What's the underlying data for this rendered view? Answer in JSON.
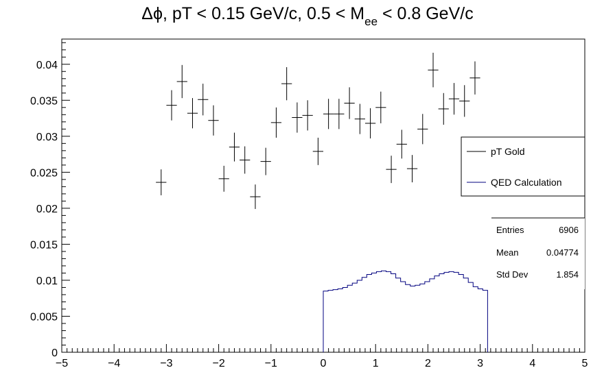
{
  "title": {
    "prefix": "Δϕ, pT < 0.15 GeV/c, 0.5 < M",
    "subscript": "ee",
    "suffix": " < 0.8 GeV/c"
  },
  "legend": {
    "entries": [
      {
        "label": "pT Gold",
        "color": "#000000"
      },
      {
        "label": "QED Calculation",
        "color": "#00007f"
      }
    ]
  },
  "stats": {
    "rows": [
      {
        "label": "Entries",
        "value": "6906"
      },
      {
        "label": "Mean",
        "value": "0.04774"
      },
      {
        "label": "Std Dev",
        "value": "1.854"
      }
    ]
  },
  "chart_data": {
    "type": "scatter",
    "xlim": [
      -5,
      5
    ],
    "ylim": [
      0,
      0.0435
    ],
    "x_ticks": [
      "−5",
      "−4",
      "−3",
      "−2",
      "−1",
      "0",
      "1",
      "2",
      "3",
      "4",
      "5"
    ],
    "y_ticks": [
      "0",
      "0.005",
      "0.01",
      "0.015",
      "0.02",
      "0.025",
      "0.03",
      "0.035",
      "0.04"
    ],
    "grid": false,
    "legend_position": "right",
    "series": [
      {
        "name": "pT Gold",
        "style": "error-bar",
        "color": "#000000",
        "x_half_width": 0.1,
        "points": [
          {
            "x": -3.1,
            "y": 0.0236,
            "err": 0.0018
          },
          {
            "x": -2.9,
            "y": 0.0343,
            "err": 0.0021
          },
          {
            "x": -2.7,
            "y": 0.0376,
            "err": 0.0023
          },
          {
            "x": -2.5,
            "y": 0.0332,
            "err": 0.0021
          },
          {
            "x": -2.3,
            "y": 0.0351,
            "err": 0.0022
          },
          {
            "x": -2.1,
            "y": 0.0322,
            "err": 0.0021
          },
          {
            "x": -1.9,
            "y": 0.0241,
            "err": 0.0018
          },
          {
            "x": -1.7,
            "y": 0.0285,
            "err": 0.002
          },
          {
            "x": -1.5,
            "y": 0.0267,
            "err": 0.0019
          },
          {
            "x": -1.3,
            "y": 0.0216,
            "err": 0.0017
          },
          {
            "x": -1.1,
            "y": 0.0265,
            "err": 0.0019
          },
          {
            "x": -0.9,
            "y": 0.0319,
            "err": 0.0021
          },
          {
            "x": -0.7,
            "y": 0.0373,
            "err": 0.0023
          },
          {
            "x": -0.5,
            "y": 0.0326,
            "err": 0.0021
          },
          {
            "x": -0.3,
            "y": 0.0329,
            "err": 0.0021
          },
          {
            "x": -0.1,
            "y": 0.0279,
            "err": 0.0019
          },
          {
            "x": 0.1,
            "y": 0.0331,
            "err": 0.0021
          },
          {
            "x": 0.3,
            "y": 0.0331,
            "err": 0.0021
          },
          {
            "x": 0.5,
            "y": 0.0346,
            "err": 0.0022
          },
          {
            "x": 0.7,
            "y": 0.0324,
            "err": 0.0021
          },
          {
            "x": 0.9,
            "y": 0.0318,
            "err": 0.0021
          },
          {
            "x": 1.1,
            "y": 0.034,
            "err": 0.0022
          },
          {
            "x": 1.3,
            "y": 0.0254,
            "err": 0.0019
          },
          {
            "x": 1.5,
            "y": 0.0289,
            "err": 0.002
          },
          {
            "x": 1.7,
            "y": 0.0255,
            "err": 0.0019
          },
          {
            "x": 1.9,
            "y": 0.031,
            "err": 0.0021
          },
          {
            "x": 2.1,
            "y": 0.0392,
            "err": 0.0024
          },
          {
            "x": 2.3,
            "y": 0.0338,
            "err": 0.0022
          },
          {
            "x": 2.5,
            "y": 0.0352,
            "err": 0.0022
          },
          {
            "x": 2.7,
            "y": 0.0349,
            "err": 0.0022
          },
          {
            "x": 2.9,
            "y": 0.0381,
            "err": 0.0023
          }
        ]
      },
      {
        "name": "QED Calculation",
        "style": "step-histogram",
        "color": "#00007f",
        "range": [
          0,
          3.1416
        ],
        "values": [
          0.0085,
          0.0086,
          0.0087,
          0.0088,
          0.009,
          0.0093,
          0.0096,
          0.01,
          0.0104,
          0.0108,
          0.011,
          0.0112,
          0.0113,
          0.0112,
          0.0109,
          0.0103,
          0.0098,
          0.0094,
          0.0092,
          0.0093,
          0.0095,
          0.0098,
          0.0102,
          0.0106,
          0.0109,
          0.0111,
          0.0112,
          0.0111,
          0.0108,
          0.0103,
          0.0097,
          0.0091,
          0.0088,
          0.0086
        ]
      }
    ]
  }
}
